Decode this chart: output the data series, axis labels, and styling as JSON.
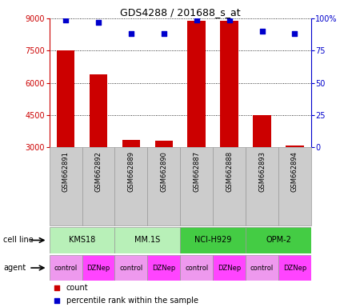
{
  "title": "GDS4288 / 201688_s_at",
  "samples": [
    "GSM662891",
    "GSM662892",
    "GSM662889",
    "GSM662890",
    "GSM662887",
    "GSM662888",
    "GSM662893",
    "GSM662894"
  ],
  "counts": [
    7500,
    6400,
    3350,
    3300,
    8900,
    8900,
    4500,
    3100
  ],
  "percentile_ranks": [
    99,
    97,
    88,
    88,
    99,
    99,
    90,
    88
  ],
  "cell_lines": [
    {
      "label": "KMS18",
      "span": [
        0,
        2
      ],
      "color": "#b8f0b8"
    },
    {
      "label": "MM.1S",
      "span": [
        2,
        4
      ],
      "color": "#b8f0b8"
    },
    {
      "label": "NCI-H929",
      "span": [
        4,
        6
      ],
      "color": "#44cc44"
    },
    {
      "label": "OPM-2",
      "span": [
        6,
        8
      ],
      "color": "#44cc44"
    }
  ],
  "agents": [
    {
      "label": "control",
      "span": [
        0,
        1
      ],
      "color": "#ee99ee"
    },
    {
      "label": "DZNep",
      "span": [
        1,
        2
      ],
      "color": "#ff44ff"
    },
    {
      "label": "control",
      "span": [
        2,
        3
      ],
      "color": "#ee99ee"
    },
    {
      "label": "DZNep",
      "span": [
        3,
        4
      ],
      "color": "#ff44ff"
    },
    {
      "label": "control",
      "span": [
        4,
        5
      ],
      "color": "#ee99ee"
    },
    {
      "label": "DZNep",
      "span": [
        5,
        6
      ],
      "color": "#ff44ff"
    },
    {
      "label": "control",
      "span": [
        6,
        7
      ],
      "color": "#ee99ee"
    },
    {
      "label": "DZNep",
      "span": [
        7,
        8
      ],
      "color": "#ff44ff"
    }
  ],
  "ylim_left": [
    3000,
    9000
  ],
  "yticks_left": [
    3000,
    4500,
    6000,
    7500,
    9000
  ],
  "yticks_right": [
    0,
    25,
    50,
    75,
    100
  ],
  "bar_color": "#cc0000",
  "dot_color": "#0000cc",
  "left_axis_color": "#cc0000",
  "right_axis_color": "#0000cc",
  "sample_bg_color": "#cccccc",
  "sample_border_color": "#999999"
}
